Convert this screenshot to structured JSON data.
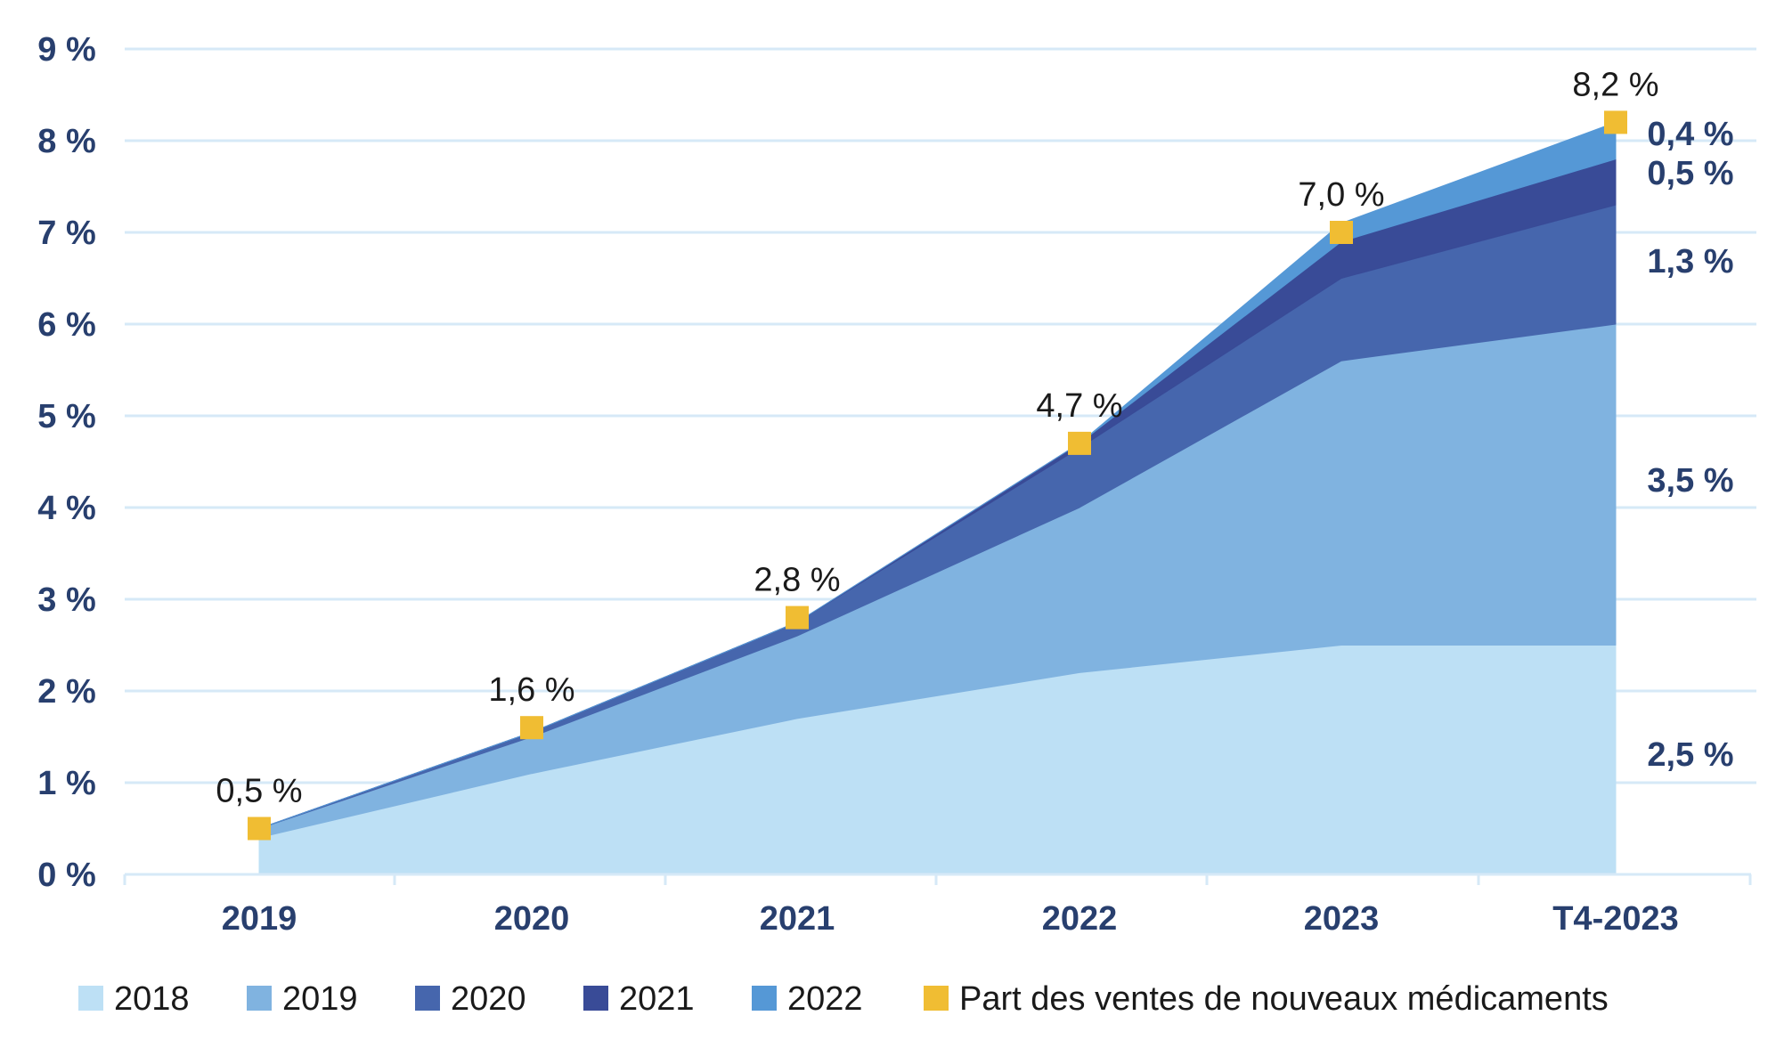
{
  "chart_data": {
    "type": "area",
    "stacked": true,
    "categories": [
      "2019",
      "2020",
      "2021",
      "2022",
      "2023",
      "T4-2023"
    ],
    "series": [
      {
        "name": "2018",
        "color": "#bde0f5",
        "values": [
          0.4,
          1.1,
          1.7,
          2.2,
          2.5,
          2.5
        ]
      },
      {
        "name": "2019",
        "color": "#80b3e0",
        "values": [
          0.1,
          0.4,
          0.9,
          1.8,
          3.1,
          3.5
        ]
      },
      {
        "name": "2020",
        "color": "#4666ad",
        "values": [
          0.0,
          0.05,
          0.15,
          0.65,
          0.9,
          1.3
        ]
      },
      {
        "name": "2021",
        "color": "#394b97",
        "values": [
          0.0,
          0.0,
          0.0,
          0.05,
          0.4,
          0.5
        ]
      },
      {
        "name": "2022",
        "color": "#5598d6",
        "values": [
          0.0,
          0.0,
          0.0,
          0.0,
          0.2,
          0.4
        ]
      }
    ],
    "line": {
      "name": "Part des ventes de nouveaux médicaments",
      "color": "#f0bd33",
      "values": [
        0.5,
        1.6,
        2.8,
        4.7,
        7.0,
        8.2
      ],
      "labels": [
        "0,5 %",
        "1,6 %",
        "2,8 %",
        "4,7 %",
        "7,0 %",
        "8,2 %"
      ]
    },
    "segment_labels": [
      "2,5 %",
      "3,5 %",
      "1,3 %",
      "0,5 %",
      "0,4 %"
    ],
    "yticks": [
      "0 %",
      "1 %",
      "2 %",
      "3 %",
      "4 %",
      "5 %",
      "6 %",
      "7 %",
      "8 %",
      "9 %"
    ],
    "ylim": [
      0,
      9
    ],
    "grid": true,
    "legend_position": "bottom",
    "title": "",
    "xlabel": "",
    "ylabel": ""
  },
  "colors": {
    "grid": "#d6e9f7",
    "axis_text": "#283f6e"
  }
}
